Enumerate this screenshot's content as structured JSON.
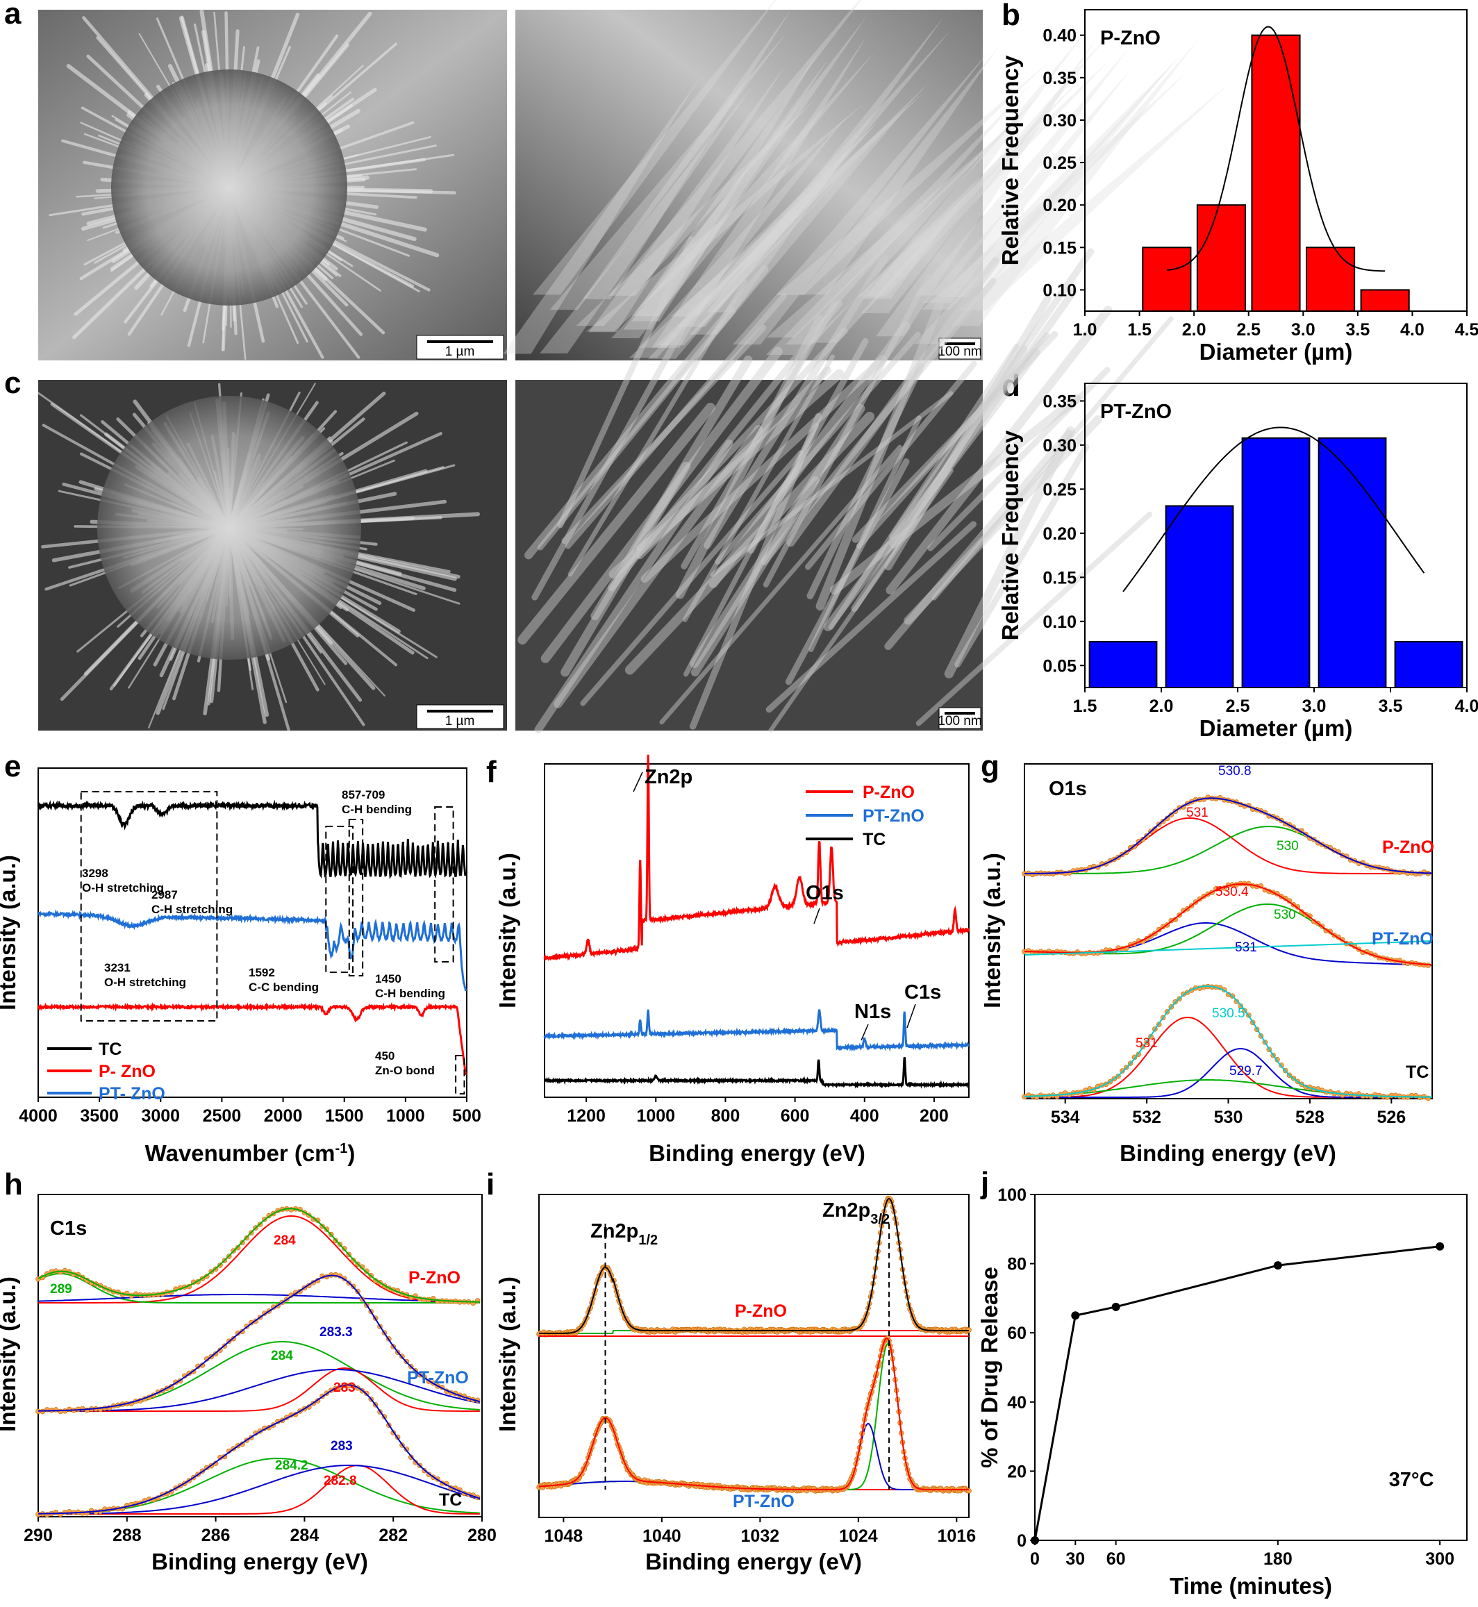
{
  "panel_letters": [
    "a",
    "b",
    "c",
    "d",
    "e",
    "f",
    "g",
    "h",
    "i",
    "j"
  ],
  "sem": {
    "a_left_scale": "1 µm",
    "a_right_scale": "100 nm",
    "c_left_scale": "1 µm",
    "c_right_scale": "100 nm"
  },
  "colors": {
    "red": "#ff0000",
    "blue": "#1f6fd6",
    "black": "#000000",
    "green": "#00b000",
    "navy": "#0000cc",
    "cyan": "#00cccc",
    "orange": "#f5a04a"
  },
  "chart_data": [
    {
      "panel": "b",
      "type": "bar",
      "title": "P-ZnO",
      "xlabel": "Diameter (µm)",
      "ylabel": "Relative Frequency",
      "xlim": [
        1.0,
        4.5
      ],
      "ylim": [
        0.075,
        0.43
      ],
      "xticks": [
        "1.0",
        "1.5",
        "2.0",
        "2.5",
        "3.0",
        "3.5",
        "4.0",
        "4.5"
      ],
      "yticks": [
        "0.10",
        "0.15",
        "0.20",
        "0.25",
        "0.30",
        "0.35",
        "0.40"
      ],
      "bars": [
        {
          "x": 1.75,
          "v": 0.15
        },
        {
          "x": 2.25,
          "v": 0.2
        },
        {
          "x": 2.75,
          "v": 0.4
        },
        {
          "x": 3.25,
          "v": 0.15
        },
        {
          "x": 3.75,
          "v": 0.1
        }
      ],
      "bar_color": "#ff0000",
      "fit": {
        "mean": 2.68,
        "sd": 0.28,
        "base": 0.122,
        "amp": 0.288,
        "x": [
          1.75,
          3.75
        ]
      }
    },
    {
      "panel": "d",
      "type": "bar",
      "title": "PT-ZnO",
      "xlabel": "Diameter (µm)",
      "ylabel": "Relative Frequency",
      "xlim": [
        1.5,
        4.0
      ],
      "ylim": [
        0.025,
        0.37
      ],
      "xticks": [
        "1.5",
        "2.0",
        "2.5",
        "3.0",
        "3.5",
        "4.0"
      ],
      "yticks": [
        "0.05",
        "0.10",
        "0.15",
        "0.20",
        "0.25",
        "0.30",
        "0.35"
      ],
      "bars": [
        {
          "x": 1.75,
          "v": 0.077
        },
        {
          "x": 2.25,
          "v": 0.231
        },
        {
          "x": 2.75,
          "v": 0.308
        },
        {
          "x": 3.25,
          "v": 0.308
        },
        {
          "x": 3.75,
          "v": 0.077
        }
      ],
      "bar_color": "#0000ff",
      "fit": {
        "mean": 2.78,
        "sd": 0.78,
        "base": 0.0,
        "amp": 0.32,
        "x": [
          1.75,
          3.72
        ]
      }
    },
    {
      "panel": "e",
      "type": "line",
      "xlabel": "Wavenumber (cm",
      "xlabel_sup": "-1",
      "xlabel_end": ")",
      "ylabel": "Intensity (a.u.)",
      "xlim": [
        4000,
        500
      ],
      "xticks": [
        "4000",
        "3500",
        "3000",
        "2500",
        "2000",
        "1500",
        "1000",
        "500"
      ],
      "legend": [
        "TC",
        "P- ZnO",
        "PT- ZnO"
      ],
      "annotations": [
        {
          "num": "3298",
          "text": "O-H stretching"
        },
        {
          "num": "2987",
          "text": "C-H stretching"
        },
        {
          "num": "3231",
          "text": "O-H stretching"
        },
        {
          "num": "1592",
          "text": "C-C bending"
        },
        {
          "num": "1450",
          "text": "C-H bending"
        },
        {
          "num": "857-709",
          "text": "C-H bending"
        },
        {
          "num": "450",
          "text": "Zn-O bond"
        }
      ]
    },
    {
      "panel": "f",
      "type": "line",
      "xlabel": "Binding energy (eV)",
      "ylabel": "Intensity (a.u.)",
      "xlim": [
        1320,
        100
      ],
      "xticks": [
        "1200",
        "1000",
        "800",
        "600",
        "400",
        "200"
      ],
      "legend": [
        "P-ZnO",
        "PT-ZnO",
        "TC"
      ],
      "peaks": [
        "Zn2p",
        "O1s",
        "N1s",
        "C1s"
      ]
    },
    {
      "panel": "g",
      "type": "line",
      "title": "O1s",
      "xlabel": "Binding energy (eV)",
      "ylabel": "Intensity (a.u.)",
      "xlim": [
        535,
        525
      ],
      "xticks": [
        "534",
        "532",
        "530",
        "528",
        "526"
      ],
      "series_labels": [
        "P-ZnO",
        "PT-ZnO",
        "TC"
      ],
      "peak_labels": {
        "pzno": [
          "530.8",
          "531",
          "530"
        ],
        "ptzno": [
          "530.4",
          "530",
          "531"
        ],
        "tc": [
          "530.5",
          "531",
          "529.7"
        ]
      }
    },
    {
      "panel": "h",
      "type": "line",
      "title": "C1s",
      "xlabel": "Binding energy (eV)",
      "ylabel": "Intensity (a.u.)",
      "xlim": [
        290,
        280
      ],
      "xticks": [
        "290",
        "288",
        "286",
        "284",
        "282",
        "280"
      ],
      "series_labels": [
        "P-ZnO",
        "PT-ZnO",
        "TC"
      ],
      "peak_labels": {
        "pzno": [
          "289",
          "284"
        ],
        "ptzno": [
          "283.3",
          "284",
          "283"
        ],
        "tc": [
          "283",
          "284.2",
          "282.8"
        ]
      }
    },
    {
      "panel": "i",
      "type": "line",
      "xlabel": "Binding energy (eV)",
      "ylabel": "Intensity (a.u.)",
      "xlim": [
        1050,
        1015
      ],
      "xticks": [
        "1048",
        "1040",
        "1032",
        "1024",
        "1016"
      ],
      "series_labels": [
        "P-ZnO",
        "PT-ZnO"
      ],
      "peak_labels": [
        "Zn2p",
        "1/2",
        "Zn2p",
        "3/2"
      ]
    },
    {
      "panel": "j",
      "type": "line",
      "xlabel": "Time (minutes)",
      "ylabel": "% of Drug Release",
      "xlim": [
        0,
        320
      ],
      "ylim": [
        0,
        100
      ],
      "xticks": [
        "0",
        "30",
        "60",
        "180",
        "300"
      ],
      "yticks": [
        "0",
        "20",
        "40",
        "60",
        "80",
        "100"
      ],
      "x": [
        0,
        30,
        60,
        180,
        300
      ],
      "y": [
        0,
        65,
        67.5,
        79.5,
        85
      ],
      "annotation": "37°C"
    }
  ]
}
